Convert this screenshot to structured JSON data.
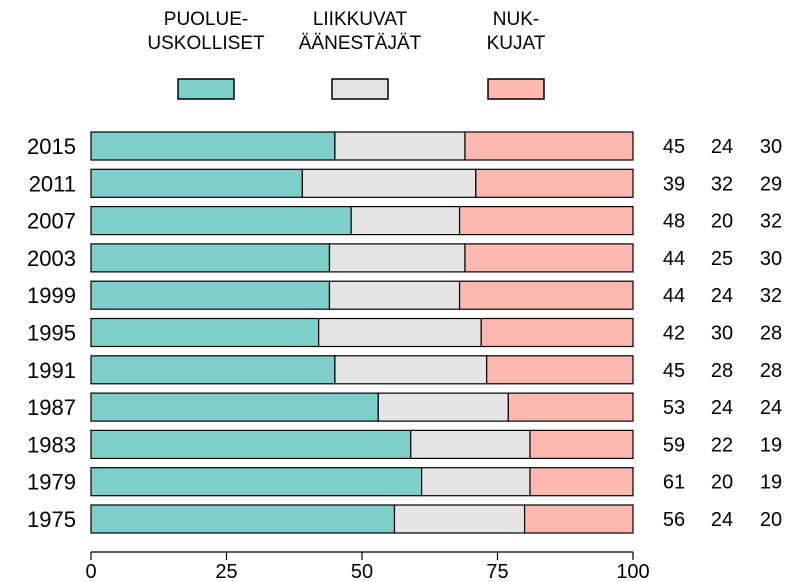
{
  "chart_data": {
    "type": "bar",
    "orientation": "horizontal",
    "stacked": true,
    "categories": [
      "2015",
      "2011",
      "2007",
      "2003",
      "1999",
      "1995",
      "1991",
      "1987",
      "1983",
      "1979",
      "1975"
    ],
    "series": [
      {
        "name_lines": [
          "PUOLUE-",
          "USKOLLISET"
        ],
        "color": "#7ecfc9",
        "values": [
          45,
          39,
          48,
          44,
          44,
          42,
          45,
          53,
          59,
          61,
          56
        ]
      },
      {
        "name_lines": [
          "LIIKKUVAT",
          "ÄÄNESTÄJÄT"
        ],
        "color": "#e5e5e5",
        "values": [
          24,
          32,
          20,
          25,
          24,
          30,
          28,
          24,
          22,
          20,
          24
        ]
      },
      {
        "name_lines": [
          "NUK-",
          "KUJAT"
        ],
        "color": "#fdb9b0",
        "values": [
          30,
          29,
          32,
          30,
          32,
          28,
          28,
          24,
          19,
          19,
          20
        ]
      }
    ],
    "xlim": [
      0,
      100
    ],
    "xticks": [
      "0",
      "25",
      "50",
      "75",
      "100"
    ],
    "legend_position": "top",
    "value_labels_position": "right",
    "grid": false
  }
}
